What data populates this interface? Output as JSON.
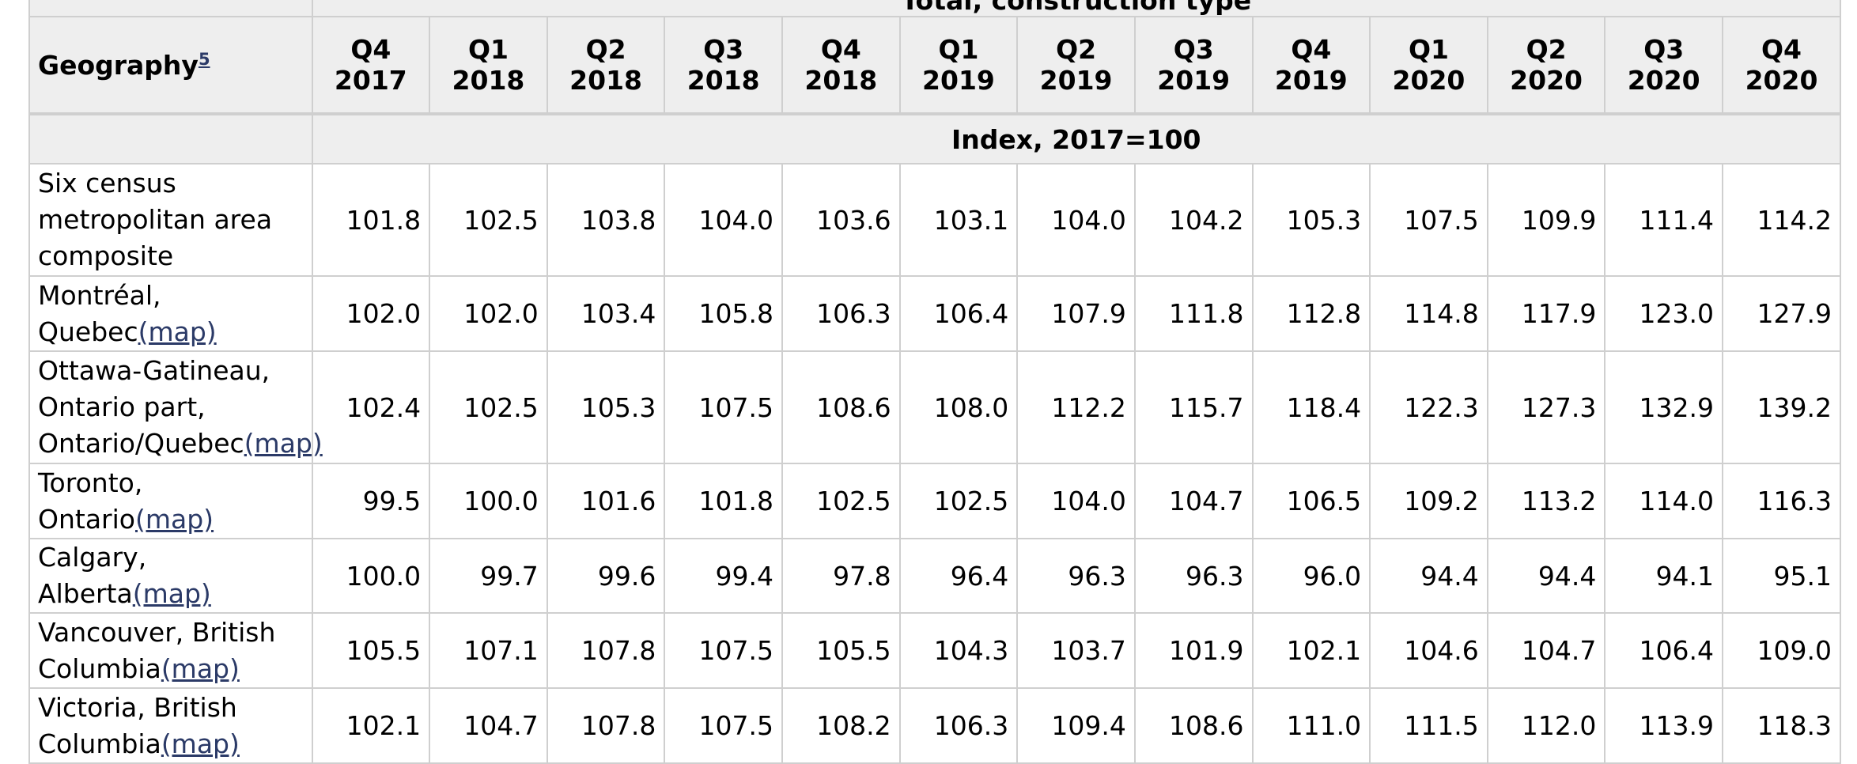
{
  "table": {
    "group_header": "Total, construction type",
    "geography_header": "Geography",
    "geography_footnote": "5",
    "unit_row": "Index, 2017=100",
    "quarters": [
      "Q4 2017",
      "Q1 2018",
      "Q2 2018",
      "Q3 2018",
      "Q4 2018",
      "Q1 2019",
      "Q2 2019",
      "Q3 2019",
      "Q4 2019",
      "Q1 2020",
      "Q2 2020",
      "Q3 2020",
      "Q4 2020"
    ],
    "map_link_label": "(map)",
    "rows": [
      {
        "geography": "Six census metropolitan area composite",
        "map": false,
        "values": [
          "101.8",
          "102.5",
          "103.8",
          "104.0",
          "103.6",
          "103.1",
          "104.0",
          "104.2",
          "105.3",
          "107.5",
          "109.9",
          "111.4",
          "114.2"
        ]
      },
      {
        "geography": "Montréal, Quebec",
        "map": true,
        "values": [
          "102.0",
          "102.0",
          "103.4",
          "105.8",
          "106.3",
          "106.4",
          "107.9",
          "111.8",
          "112.8",
          "114.8",
          "117.9",
          "123.0",
          "127.9"
        ]
      },
      {
        "geography": "Ottawa-Gatineau, Ontario part, Ontario/Quebec",
        "map": true,
        "values": [
          "102.4",
          "102.5",
          "105.3",
          "107.5",
          "108.6",
          "108.0",
          "112.2",
          "115.7",
          "118.4",
          "122.3",
          "127.3",
          "132.9",
          "139.2"
        ]
      },
      {
        "geography": "Toronto, Ontario",
        "map": true,
        "values": [
          "99.5",
          "100.0",
          "101.6",
          "101.8",
          "102.5",
          "102.5",
          "104.0",
          "104.7",
          "106.5",
          "109.2",
          "113.2",
          "114.0",
          "116.3"
        ]
      },
      {
        "geography": "Calgary, Alberta",
        "map": true,
        "values": [
          "100.0",
          "99.7",
          "99.6",
          "99.4",
          "97.8",
          "96.4",
          "96.3",
          "96.3",
          "96.0",
          "94.4",
          "94.4",
          "94.1",
          "95.1"
        ]
      },
      {
        "geography": "Vancouver, British Columbia",
        "map": true,
        "values": [
          "105.5",
          "107.1",
          "107.8",
          "107.5",
          "105.5",
          "104.3",
          "103.7",
          "101.9",
          "102.1",
          "104.6",
          "104.7",
          "106.4",
          "109.0"
        ]
      },
      {
        "geography": "Victoria, British Columbia",
        "map": true,
        "values": [
          "102.1",
          "104.7",
          "107.8",
          "107.5",
          "108.2",
          "106.3",
          "109.4",
          "108.6",
          "111.0",
          "111.5",
          "112.0",
          "113.9",
          "118.3"
        ]
      }
    ]
  }
}
